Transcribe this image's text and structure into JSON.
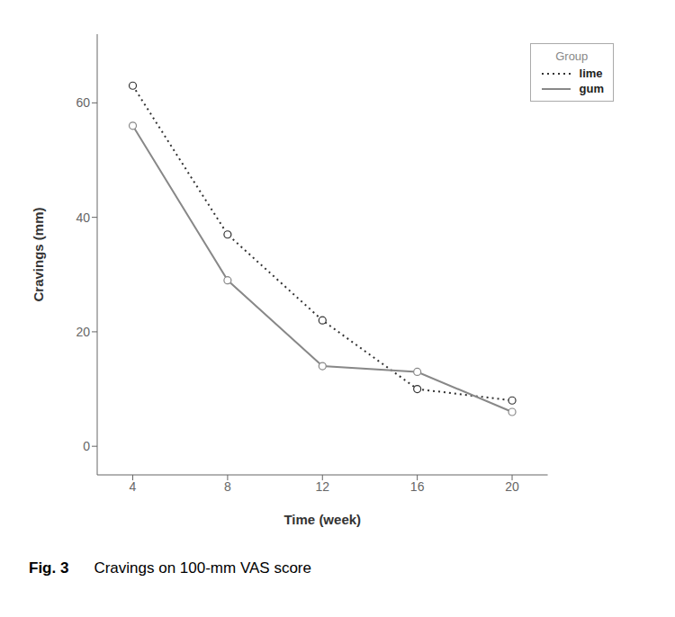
{
  "chart_data": {
    "type": "line",
    "x": [
      4,
      8,
      12,
      16,
      20
    ],
    "series": [
      {
        "name": "lime",
        "color": "#333333",
        "line_style": "dotted",
        "marker": "circle",
        "values": [
          63,
          37,
          22,
          10,
          8
        ]
      },
      {
        "name": "gum",
        "color": "#888888",
        "line_style": "solid",
        "marker": "circle",
        "values": [
          56,
          29,
          14,
          13,
          6
        ]
      }
    ],
    "x_label": "Time (week)",
    "y_label": "Cravings (mm)",
    "xlim": [
      2.5,
      21.5
    ],
    "ylim": [
      -5,
      72
    ],
    "xticks": [
      4,
      8,
      12,
      16,
      20
    ],
    "yticks": [
      0,
      20,
      40,
      60
    ],
    "legend_title": "Group",
    "legend": "upper right",
    "grid": false,
    "annotations": [
      "Fig. 3",
      "Cravings on 100-mm VAS score"
    ]
  }
}
